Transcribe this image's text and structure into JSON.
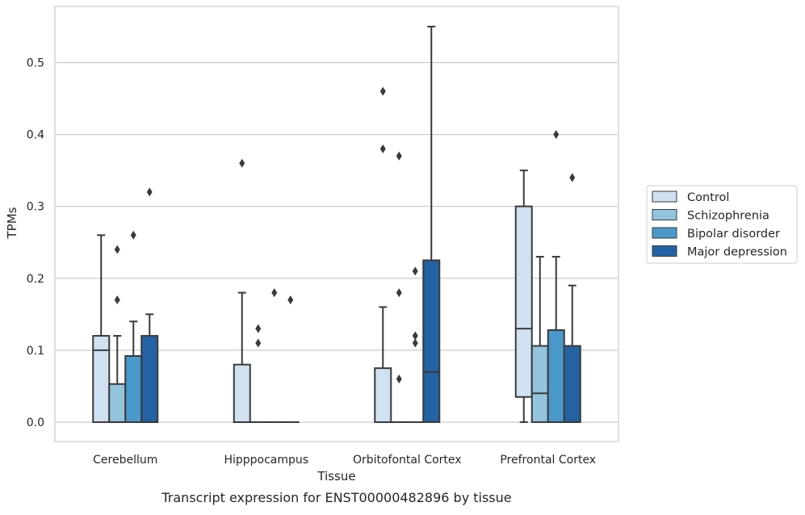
{
  "caption": "Transcript expression for ENST00000482896 by tissue",
  "colors": {
    "Control": "#d0e1f2",
    "Schizophrenia": "#93c4de",
    "Bipolar disorder": "#4a98c9",
    "Major depression": "#2363a3",
    "grid": "#cccccc",
    "frame": "#cccccc",
    "box_line": "#3a3a3a"
  },
  "chart_data": {
    "type": "box",
    "xlabel": "Tissue",
    "ylabel": "TPMs",
    "ylim": [
      -0.027,
      0.578
    ],
    "yticks": [
      0.0,
      0.1,
      0.2,
      0.3,
      0.4,
      0.5
    ],
    "ytick_labels": [
      "0.0",
      "0.1",
      "0.2",
      "0.3",
      "0.4",
      "0.5"
    ],
    "grid": "horizontal",
    "legend_position": "right",
    "categories": [
      "Cerebellum",
      "Hipppocampus",
      "Orbitofontal Cortex",
      "Prefrontal Cortex"
    ],
    "series": [
      {
        "name": "Control",
        "boxes": [
          {
            "q1": 0.0,
            "median": 0.1,
            "q3": 0.12,
            "whisker_low": 0.0,
            "whisker_high": 0.26,
            "outliers": []
          },
          {
            "q1": 0.0,
            "median": 0.0,
            "q3": 0.08,
            "whisker_low": 0.0,
            "whisker_high": 0.18,
            "outliers": [
              0.36
            ]
          },
          {
            "q1": 0.0,
            "median": 0.0,
            "q3": 0.075,
            "whisker_low": 0.0,
            "whisker_high": 0.16,
            "outliers": [
              0.38,
              0.46
            ]
          },
          {
            "q1": 0.035,
            "median": 0.13,
            "q3": 0.3,
            "whisker_low": 0.0,
            "whisker_high": 0.35,
            "outliers": []
          }
        ]
      },
      {
        "name": "Schizophrenia",
        "boxes": [
          {
            "q1": 0.0,
            "median": 0.0,
            "q3": 0.053,
            "whisker_low": 0.0,
            "whisker_high": 0.12,
            "outliers": [
              0.17,
              0.24
            ]
          },
          {
            "q1": 0.0,
            "median": 0.0,
            "q3": 0.0,
            "whisker_low": 0.0,
            "whisker_high": 0.0,
            "outliers": [
              0.11,
              0.13
            ]
          },
          {
            "q1": 0.0,
            "median": 0.0,
            "q3": 0.0,
            "whisker_low": 0.0,
            "whisker_high": 0.0,
            "outliers": [
              0.06,
              0.18,
              0.37
            ]
          },
          {
            "q1": 0.0,
            "median": 0.04,
            "q3": 0.106,
            "whisker_low": 0.0,
            "whisker_high": 0.23,
            "outliers": []
          }
        ]
      },
      {
        "name": "Bipolar disorder",
        "boxes": [
          {
            "q1": 0.0,
            "median": 0.0,
            "q3": 0.092,
            "whisker_low": 0.0,
            "whisker_high": 0.14,
            "outliers": [
              0.26
            ]
          },
          {
            "q1": 0.0,
            "median": 0.0,
            "q3": 0.0,
            "whisker_low": 0.0,
            "whisker_high": 0.0,
            "outliers": [
              0.18
            ]
          },
          {
            "q1": 0.0,
            "median": 0.0,
            "q3": 0.0,
            "whisker_low": 0.0,
            "whisker_high": 0.0,
            "outliers": [
              0.11,
              0.12,
              0.21
            ]
          },
          {
            "q1": 0.0,
            "median": 0.0,
            "q3": 0.128,
            "whisker_low": 0.0,
            "whisker_high": 0.23,
            "outliers": [
              0.4
            ]
          }
        ]
      },
      {
        "name": "Major depression",
        "boxes": [
          {
            "q1": 0.0,
            "median": 0.0,
            "q3": 0.12,
            "whisker_low": 0.0,
            "whisker_high": 0.15,
            "outliers": [
              0.32
            ]
          },
          {
            "q1": 0.0,
            "median": 0.0,
            "q3": 0.0,
            "whisker_low": 0.0,
            "whisker_high": 0.0,
            "outliers": [
              0.17
            ]
          },
          {
            "q1": 0.0,
            "median": 0.07,
            "q3": 0.225,
            "whisker_low": 0.0,
            "whisker_high": 0.55,
            "outliers": []
          },
          {
            "q1": 0.0,
            "median": 0.0,
            "q3": 0.106,
            "whisker_low": 0.0,
            "whisker_high": 0.19,
            "outliers": [
              0.34
            ]
          }
        ]
      }
    ]
  }
}
